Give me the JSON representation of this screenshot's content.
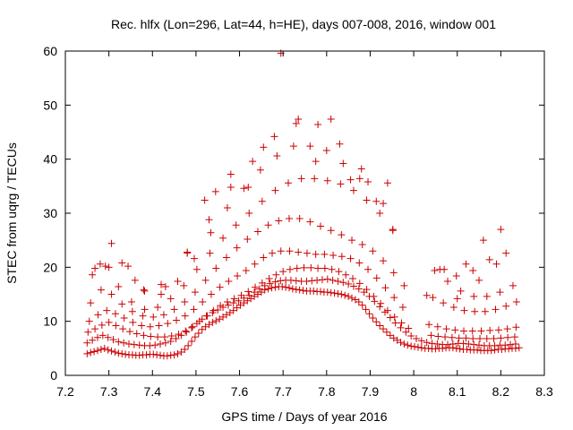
{
  "chart_data": {
    "type": "scatter",
    "title": "Rec. hlfx (Lon=296, Lat=44, h=HE), days 007-008, 2016, window 001",
    "xlabel": "GPS time / Days of year 2016",
    "ylabel": "STEC from uqrg / TECUs",
    "xlim": [
      7.2,
      8.3
    ],
    "ylim": [
      0,
      60
    ],
    "xticks": [
      "7.2",
      "7.3",
      "7.4",
      "7.5",
      "7.6",
      "7.7",
      "7.8",
      "7.9",
      "8",
      "8.1",
      "8.2",
      "8.3"
    ],
    "yticks": [
      "0",
      "10",
      "20",
      "30",
      "40",
      "50",
      "60"
    ],
    "grid": false,
    "legend": "none",
    "marker": "plus",
    "color": "#cc0000",
    "series": [
      {
        "x": [
          7.25,
          7.258,
          7.266,
          7.274,
          7.282,
          7.29,
          7.298,
          7.306,
          7.314,
          7.322,
          7.33,
          7.338,
          7.346,
          7.354,
          7.362,
          7.37,
          7.378,
          7.386,
          7.394,
          7.402,
          7.41,
          7.418,
          7.426,
          7.434,
          7.442,
          7.45,
          7.458,
          7.466,
          7.474,
          7.482,
          7.49,
          7.498,
          7.506,
          7.514,
          7.522,
          7.53,
          7.538,
          7.546,
          7.554,
          7.562,
          7.57,
          7.578,
          7.586,
          7.594,
          7.602,
          7.61,
          7.618,
          7.626,
          7.634,
          7.642,
          7.65,
          7.658,
          7.666,
          7.674,
          7.682,
          7.69,
          7.698,
          7.706,
          7.714,
          7.722,
          7.73,
          7.738,
          7.746,
          7.754,
          7.762,
          7.77,
          7.778,
          7.786,
          7.794,
          7.802,
          7.81,
          7.818,
          7.826,
          7.834,
          7.842,
          7.85,
          7.858,
          7.866,
          7.874,
          7.882,
          7.89,
          7.898,
          7.906,
          7.914,
          7.922,
          7.93,
          7.938,
          7.946,
          7.954,
          7.962,
          7.97,
          7.978,
          7.986,
          7.994,
          8.002,
          8.01,
          8.018,
          8.026,
          8.034,
          8.042,
          8.05,
          8.058,
          8.066,
          8.074,
          8.082,
          8.09,
          8.098,
          8.106,
          8.114,
          8.122,
          8.13,
          8.138,
          8.146,
          8.154,
          8.162,
          8.17,
          8.178,
          8.186,
          8.194,
          8.202,
          8.21,
          8.218,
          8.226,
          8.234,
          8.242
        ],
        "y": [
          4.0,
          4.2,
          4.4,
          4.6,
          4.8,
          5.0,
          4.7,
          4.5,
          4.3,
          4.1,
          4.0,
          3.9,
          3.8,
          3.8,
          3.7,
          3.7,
          3.8,
          3.8,
          3.9,
          3.9,
          3.8,
          3.7,
          3.6,
          3.6,
          3.7,
          3.8,
          4.0,
          4.3,
          4.8,
          5.5,
          6.3,
          7.1,
          7.8,
          8.5,
          9.0,
          9.4,
          9.8,
          10.1,
          10.4,
          10.8,
          11.2,
          11.6,
          12.0,
          12.5,
          13.0,
          13.4,
          13.8,
          14.2,
          14.6,
          15.0,
          15.4,
          15.8,
          16.0,
          16.2,
          16.3,
          16.4,
          16.4,
          16.3,
          16.2,
          16.0,
          15.9,
          15.8,
          15.7,
          15.6,
          15.6,
          15.6,
          15.5,
          15.5,
          15.4,
          15.4,
          15.3,
          15.2,
          15.1,
          15.0,
          14.8,
          14.6,
          14.3,
          14.0,
          13.6,
          13.0,
          12.2,
          11.4,
          10.6,
          9.9,
          9.2,
          8.6,
          8.0,
          7.4,
          6.9,
          6.5,
          6.1,
          5.8,
          5.6,
          5.4,
          5.3,
          5.2,
          5.1,
          5.0,
          5.0,
          4.9,
          4.9,
          5.0,
          5.0,
          5.1,
          5.1,
          5.1,
          5.0,
          4.9,
          4.8,
          4.8,
          4.7,
          4.7,
          4.7,
          4.6,
          4.6,
          4.6,
          4.6,
          4.7,
          4.8,
          4.8,
          4.9,
          4.9,
          5.0,
          5.0,
          5.1
        ]
      },
      {
        "x": [
          7.25,
          7.262,
          7.274,
          7.286,
          7.298,
          7.31,
          7.322,
          7.334,
          7.346,
          7.358,
          7.37,
          7.382,
          7.394,
          7.406,
          7.418,
          7.43,
          7.442,
          7.454,
          7.466,
          7.478,
          7.49,
          7.502,
          7.514,
          7.526,
          7.538,
          7.55,
          7.562,
          7.574,
          7.586,
          7.598,
          7.61,
          7.622,
          7.634,
          7.646,
          7.658,
          7.67,
          7.682,
          7.694,
          7.706,
          7.718,
          7.73,
          7.742,
          7.754,
          7.766,
          7.778,
          7.79,
          7.802,
          7.814,
          7.826,
          7.838,
          7.85,
          7.862,
          7.874,
          7.886,
          7.898,
          7.91,
          7.922,
          7.934,
          7.946,
          7.958,
          7.97,
          7.982,
          7.994,
          8.006,
          8.018,
          8.03,
          8.042,
          8.054,
          8.066,
          8.078,
          8.09,
          8.102,
          8.114,
          8.126,
          8.138,
          8.15,
          8.162,
          8.174,
          8.186,
          8.198,
          8.21,
          8.222,
          8.234
        ],
        "y": [
          6.0,
          6.5,
          7.0,
          7.4,
          7.0,
          6.6,
          6.2,
          6.0,
          5.8,
          5.7,
          5.6,
          5.5,
          5.5,
          5.6,
          5.8,
          6.0,
          6.3,
          6.8,
          7.4,
          8.0,
          8.8,
          9.6,
          10.4,
          11.0,
          11.6,
          12.1,
          12.6,
          13.0,
          13.4,
          13.8,
          14.3,
          14.8,
          15.4,
          16.0,
          16.6,
          17.0,
          17.3,
          17.5,
          17.6,
          17.6,
          17.5,
          17.4,
          17.4,
          17.5,
          17.6,
          17.7,
          17.8,
          17.6,
          17.4,
          17.2,
          16.9,
          16.5,
          16.0,
          15.4,
          14.6,
          13.7,
          12.7,
          11.7,
          10.7,
          9.7,
          8.8,
          8.0,
          7.3,
          6.8,
          6.4,
          6.1,
          5.9,
          5.8,
          5.7,
          5.7,
          5.8,
          5.9,
          5.9,
          5.8,
          5.7,
          5.6,
          5.5,
          5.5,
          5.5,
          5.6,
          5.6,
          5.7,
          5.8
        ]
      },
      {
        "x": [
          7.252,
          7.268,
          7.284,
          7.3,
          7.316,
          7.332,
          7.348,
          7.364,
          7.38,
          7.396,
          7.412,
          7.428,
          7.444,
          7.46,
          7.476,
          7.492,
          7.508,
          7.524,
          7.54,
          7.556,
          7.572,
          7.588,
          7.604,
          7.62,
          7.636,
          7.652,
          7.668,
          7.684,
          7.7,
          7.716,
          7.732,
          7.748,
          7.764,
          7.78,
          7.796,
          7.812,
          7.828,
          7.844,
          7.86,
          7.876,
          7.892,
          7.908,
          7.924,
          7.94,
          7.956,
          7.972,
          7.988,
          8.04,
          8.056,
          8.072,
          8.088,
          8.104,
          8.12,
          8.136,
          8.152,
          8.168,
          8.184,
          8.2,
          8.216,
          8.232
        ],
        "y": [
          8.0,
          8.6,
          9.3,
          9.8,
          9.2,
          8.6,
          8.1,
          7.7,
          7.4,
          7.2,
          7.1,
          7.1,
          7.3,
          7.6,
          8.2,
          9.0,
          10.0,
          11.0,
          12.0,
          12.9,
          13.6,
          14.2,
          14.8,
          15.5,
          16.3,
          17.1,
          17.9,
          18.6,
          19.2,
          19.6,
          19.8,
          19.9,
          19.9,
          19.8,
          19.8,
          19.6,
          19.2,
          18.6,
          17.9,
          17.0,
          15.9,
          14.6,
          13.3,
          12.0,
          10.8,
          9.7,
          8.7,
          7.4,
          7.2,
          7.1,
          7.0,
          6.9,
          6.9,
          6.8,
          6.8,
          6.8,
          6.8,
          6.9,
          7.0,
          7.1
        ]
      },
      {
        "x": [
          7.255,
          7.275,
          7.295,
          7.315,
          7.335,
          7.355,
          7.375,
          7.395,
          7.415,
          7.435,
          7.455,
          7.475,
          7.495,
          7.515,
          7.535,
          7.555,
          7.575,
          7.595,
          7.615,
          7.635,
          7.655,
          7.675,
          7.695,
          7.715,
          7.735,
          7.755,
          7.775,
          7.795,
          7.815,
          7.835,
          7.855,
          7.875,
          7.895,
          7.915,
          7.935,
          7.955,
          7.975,
          8.035,
          8.055,
          8.075,
          8.095,
          8.115,
          8.135,
          8.155,
          8.175,
          8.195,
          8.215,
          8.235
        ],
        "y": [
          10.0,
          11.2,
          12.0,
          11.4,
          10.6,
          9.8,
          9.2,
          9.0,
          9.2,
          9.6,
          10.2,
          11.0,
          12.2,
          13.6,
          15.0,
          16.3,
          17.4,
          18.4,
          19.4,
          20.6,
          21.8,
          22.6,
          23.0,
          23.0,
          22.8,
          22.6,
          22.4,
          22.4,
          22.2,
          22.0,
          21.6,
          20.8,
          19.6,
          18.0,
          16.2,
          14.4,
          12.6,
          9.4,
          9.0,
          8.6,
          8.4,
          8.2,
          8.2,
          8.2,
          8.3,
          8.4,
          8.6,
          8.9
        ]
      },
      {
        "x": [
          7.258,
          7.282,
          7.306,
          7.33,
          7.354,
          7.378,
          7.402,
          7.426,
          7.45,
          7.474,
          7.498,
          7.522,
          7.546,
          7.57,
          7.594,
          7.618,
          7.642,
          7.666,
          7.69,
          7.714,
          7.738,
          7.762,
          7.786,
          7.81,
          7.834,
          7.858,
          7.882,
          7.906,
          7.93,
          7.954,
          7.978,
          8.044,
          8.068,
          8.092,
          8.116,
          8.14,
          8.164,
          8.188,
          8.212,
          8.236
        ],
        "y": [
          13.4,
          15.8,
          15.0,
          13.2,
          11.8,
          11.0,
          10.8,
          11.2,
          12.2,
          13.6,
          15.4,
          17.6,
          19.8,
          21.8,
          23.6,
          25.2,
          26.6,
          27.8,
          28.6,
          29.0,
          29.0,
          28.4,
          27.6,
          26.8,
          26.0,
          25.0,
          24.2,
          23.0,
          21.2,
          19.0,
          16.6,
          14.4,
          13.4,
          12.6,
          12.0,
          11.8,
          11.8,
          12.2,
          12.8,
          13.6
        ]
      },
      {
        "x": [
          7.262,
          7.292,
          7.322,
          7.352,
          7.382,
          7.412,
          7.442,
          7.472,
          7.502,
          7.532,
          7.562,
          7.592,
          7.622,
          7.652,
          7.682,
          7.712,
          7.742,
          7.772,
          7.802,
          7.832,
          7.862,
          7.892,
          7.922,
          7.952,
          8.048,
          8.078,
          8.108,
          8.138,
          8.168,
          8.198,
          8.228
        ],
        "y": [
          18.6,
          20.2,
          16.4,
          13.6,
          12.2,
          12.6,
          14.2,
          16.6,
          19.6,
          22.6,
          25.4,
          27.8,
          30.0,
          32.2,
          34.2,
          35.6,
          36.4,
          36.4,
          36.0,
          35.4,
          34.2,
          32.4,
          30.0,
          26.8,
          19.4,
          17.4,
          15.6,
          14.6,
          14.6,
          15.4,
          16.6
        ]
      },
      {
        "x": [
          7.268,
          7.306,
          7.344,
          7.382,
          7.42,
          7.458,
          7.496,
          7.534,
          7.572,
          7.61,
          7.648,
          7.686,
          7.724,
          7.762,
          7.8,
          7.838,
          7.876,
          7.914,
          7.952,
          8.06,
          8.098,
          8.136,
          8.174,
          8.212
        ],
        "y": [
          19.8,
          24.4,
          20.2,
          15.6,
          15.0,
          17.4,
          21.6,
          26.4,
          31.0,
          34.6,
          38.0,
          40.6,
          42.4,
          42.4,
          41.6,
          39.2,
          36.4,
          32.2,
          27.0,
          19.6,
          18.4,
          19.4,
          21.4,
          22.6
        ]
      },
      {
        "x": [
          7.28,
          7.33,
          7.38,
          7.43,
          7.48,
          7.53,
          7.58,
          7.63,
          7.68,
          7.73,
          7.78,
          7.83,
          7.88,
          7.93,
          8.07,
          8.12,
          8.16,
          8.2
        ],
        "y": [
          20.6,
          20.8,
          15.8,
          16.4,
          22.8,
          28.8,
          34.8,
          39.6,
          44.2,
          46.6,
          46.4,
          42.8,
          38.2,
          31.8,
          19.6,
          20.6,
          25.0,
          27.0
        ]
      },
      {
        "x": [
          7.3,
          7.36,
          7.42,
          7.48,
          7.52,
          7.545,
          7.58,
          7.62,
          7.655,
          7.695,
          7.735,
          7.775,
          7.81,
          7.855,
          7.895,
          7.94,
          8.03,
          8.1,
          8.15,
          8.19
        ],
        "y": [
          20.0,
          17.6,
          16.8,
          22.6,
          32.4,
          34.0,
          37.2,
          34.8,
          42.2,
          59.6,
          47.4,
          39.6,
          47.4,
          36.2,
          35.8,
          35.6,
          14.8,
          14.2,
          17.6,
          20.6
        ]
      }
    ]
  }
}
